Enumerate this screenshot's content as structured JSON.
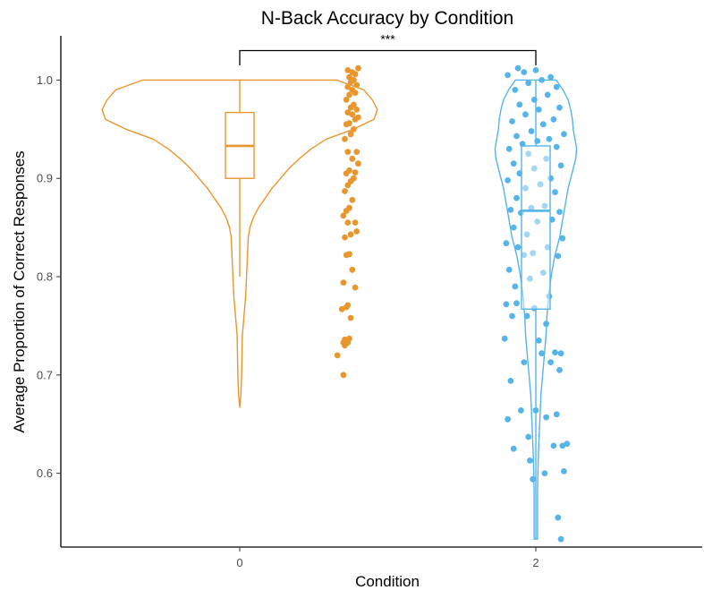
{
  "chart_data": {
    "type": "violin",
    "title": "N-Back Accuracy by Condition",
    "xlabel": "Condition",
    "ylabel": "Average Proportion of Correct Responses",
    "categories": [
      "0",
      "2"
    ],
    "ylim": [
      0.525,
      1.045
    ],
    "yticks": [
      0.6,
      0.7,
      0.8,
      0.9,
      1.0
    ],
    "ytick_labels": [
      "0.6",
      "0.7",
      "0.8",
      "0.9",
      "1.0"
    ],
    "grid": false,
    "significance": {
      "label": "***",
      "between": [
        "0",
        "2"
      ]
    },
    "series": [
      {
        "category": "0",
        "color": "#E8962E",
        "box": {
          "min": 0.8,
          "q1": 0.9,
          "median": 0.933,
          "q3": 0.967,
          "max": 1.0
        },
        "violin": [
          [
            1.0,
            0.57
          ],
          [
            0.99,
            0.73
          ],
          [
            0.98,
            0.78
          ],
          [
            0.97,
            0.81
          ],
          [
            0.96,
            0.79
          ],
          [
            0.95,
            0.67
          ],
          [
            0.94,
            0.51
          ],
          [
            0.93,
            0.42
          ],
          [
            0.92,
            0.35
          ],
          [
            0.91,
            0.29
          ],
          [
            0.9,
            0.24
          ],
          [
            0.89,
            0.19
          ],
          [
            0.88,
            0.15
          ],
          [
            0.87,
            0.11
          ],
          [
            0.86,
            0.08
          ],
          [
            0.85,
            0.06
          ],
          [
            0.84,
            0.05
          ],
          [
            0.82,
            0.045
          ],
          [
            0.8,
            0.04
          ],
          [
            0.78,
            0.035
          ],
          [
            0.76,
            0.025
          ],
          [
            0.74,
            0.015
          ],
          [
            0.72,
            0.013
          ],
          [
            0.7,
            0.011
          ],
          [
            0.68,
            0.007
          ],
          [
            0.667,
            0.0
          ]
        ],
        "points": [
          [
            0.66,
            0.72
          ],
          [
            0.7,
            0.7
          ],
          [
            0.7,
            0.733
          ],
          [
            0.73,
            0.733
          ],
          [
            0.71,
            0.73
          ],
          [
            0.69,
            0.767
          ],
          [
            0.74,
            0.737
          ],
          [
            0.71,
            0.736
          ],
          [
            0.75,
            0.758
          ],
          [
            0.72,
            0.769
          ],
          [
            0.73,
            0.771
          ],
          [
            0.78,
            0.789
          ],
          [
            0.7,
            0.794
          ],
          [
            0.76,
            0.807
          ],
          [
            0.72,
            0.822
          ],
          [
            0.74,
            0.823
          ],
          [
            0.71,
            0.84
          ],
          [
            0.75,
            0.843
          ],
          [
            0.73,
            0.855
          ],
          [
            0.78,
            0.855
          ],
          [
            0.7,
            0.862
          ],
          [
            0.72,
            0.867
          ],
          [
            0.74,
            0.87
          ],
          [
            0.71,
            0.887
          ],
          [
            0.76,
            0.878
          ],
          [
            0.79,
            0.846
          ],
          [
            0.73,
            0.893
          ],
          [
            0.75,
            0.897
          ],
          [
            0.77,
            0.9
          ],
          [
            0.72,
            0.905
          ],
          [
            0.78,
            0.906
          ],
          [
            0.74,
            0.908
          ],
          [
            0.8,
            0.915
          ],
          [
            0.76,
            0.92
          ],
          [
            0.73,
            0.927
          ],
          [
            0.79,
            0.927
          ],
          [
            0.71,
            0.94
          ],
          [
            0.75,
            0.945
          ],
          [
            0.77,
            0.95
          ],
          [
            0.72,
            0.955
          ],
          [
            0.74,
            0.956
          ],
          [
            0.78,
            0.96
          ],
          [
            0.8,
            0.962
          ],
          [
            0.76,
            0.965
          ],
          [
            0.73,
            0.967
          ],
          [
            0.79,
            0.97
          ],
          [
            0.75,
            0.972
          ],
          [
            0.77,
            0.975
          ],
          [
            0.72,
            0.98
          ],
          [
            0.74,
            0.985
          ],
          [
            0.78,
            0.987
          ],
          [
            0.76,
            0.99
          ],
          [
            0.73,
            0.993
          ],
          [
            0.79,
            0.995
          ],
          [
            0.75,
            0.998
          ],
          [
            0.77,
            1.0
          ],
          [
            0.74,
            1.003
          ],
          [
            0.78,
            1.006
          ],
          [
            0.76,
            1.008
          ],
          [
            0.73,
            1.01
          ],
          [
            0.8,
            1.012
          ]
        ]
      },
      {
        "category": "2",
        "color": "#56B4E9",
        "box": {
          "min": 0.533,
          "q1": 0.767,
          "median": 0.867,
          "q3": 0.933,
          "max": 1.0
        },
        "violin": [
          [
            1.0,
            0.12
          ],
          [
            0.99,
            0.16
          ],
          [
            0.98,
            0.19
          ],
          [
            0.97,
            0.205
          ],
          [
            0.96,
            0.215
          ],
          [
            0.95,
            0.22
          ],
          [
            0.94,
            0.23
          ],
          [
            0.93,
            0.24
          ],
          [
            0.92,
            0.235
          ],
          [
            0.91,
            0.22
          ],
          [
            0.9,
            0.205
          ],
          [
            0.89,
            0.19
          ],
          [
            0.88,
            0.18
          ],
          [
            0.87,
            0.17
          ],
          [
            0.86,
            0.16
          ],
          [
            0.85,
            0.15
          ],
          [
            0.84,
            0.14
          ],
          [
            0.83,
            0.125
          ],
          [
            0.82,
            0.11
          ],
          [
            0.8,
            0.09
          ],
          [
            0.78,
            0.075
          ],
          [
            0.76,
            0.065
          ],
          [
            0.74,
            0.06
          ],
          [
            0.72,
            0.05
          ],
          [
            0.7,
            0.04
          ],
          [
            0.68,
            0.03
          ],
          [
            0.66,
            0.025
          ],
          [
            0.64,
            0.02
          ],
          [
            0.62,
            0.015
          ],
          [
            0.6,
            0.012
          ],
          [
            0.58,
            0.01
          ],
          [
            0.56,
            0.01
          ],
          [
            0.54,
            0.01
          ],
          [
            0.533,
            0.01
          ]
        ],
        "points": [
          [
            2.17,
            0.533
          ],
          [
            2.15,
            0.555
          ],
          [
            1.98,
            0.594
          ],
          [
            2.06,
            0.6
          ],
          [
            2.19,
            0.602
          ],
          [
            1.96,
            0.613
          ],
          [
            2.18,
            0.628
          ],
          [
            1.85,
            0.625
          ],
          [
            2.12,
            0.628
          ],
          [
            2.21,
            0.63
          ],
          [
            1.95,
            0.637
          ],
          [
            2.07,
            0.657
          ],
          [
            2.14,
            0.66
          ],
          [
            1.81,
            0.655
          ],
          [
            1.9,
            0.664
          ],
          [
            2.0,
            0.664
          ],
          [
            1.83,
            0.694
          ],
          [
            2.16,
            0.705
          ],
          [
            2.1,
            0.713
          ],
          [
            1.92,
            0.713
          ],
          [
            2.04,
            0.722
          ],
          [
            2.13,
            0.723
          ],
          [
            1.79,
            0.737
          ],
          [
            2.17,
            0.722
          ],
          [
            1.84,
            0.76
          ],
          [
            2.02,
            0.735
          ],
          [
            1.94,
            0.76
          ],
          [
            1.87,
            0.773
          ],
          [
            2.07,
            0.752
          ],
          [
            1.99,
            0.768
          ],
          [
            1.8,
            0.772
          ],
          [
            2.09,
            0.78
          ],
          [
            1.86,
            0.79
          ],
          [
            1.96,
            0.798
          ],
          [
            2.05,
            0.804
          ],
          [
            1.82,
            0.807
          ],
          [
            1.92,
            0.822
          ],
          [
            2.15,
            0.821
          ],
          [
            1.88,
            0.83
          ],
          [
            1.98,
            0.824
          ],
          [
            2.08,
            0.83
          ],
          [
            1.8,
            0.834
          ],
          [
            1.94,
            0.843
          ],
          [
            2.18,
            0.839
          ],
          [
            1.85,
            0.85
          ],
          [
            2.01,
            0.856
          ],
          [
            2.11,
            0.858
          ],
          [
            1.9,
            0.865
          ],
          [
            2.16,
            0.866
          ],
          [
            1.83,
            0.868
          ],
          [
            1.97,
            0.87
          ],
          [
            2.06,
            0.872
          ],
          [
            1.87,
            0.88
          ],
          [
            2.13,
            0.886
          ],
          [
            1.93,
            0.89
          ],
          [
            2.03,
            0.894
          ],
          [
            1.81,
            0.898
          ],
          [
            2.1,
            0.9
          ],
          [
            1.89,
            0.905
          ],
          [
            1.99,
            0.91
          ],
          [
            2.17,
            0.913
          ],
          [
            1.85,
            0.915
          ],
          [
            2.07,
            0.92
          ],
          [
            1.95,
            0.925
          ],
          [
            1.82,
            0.93
          ],
          [
            2.14,
            0.932
          ],
          [
            1.91,
            0.935
          ],
          [
            2.01,
            0.938
          ],
          [
            2.09,
            0.94
          ],
          [
            1.87,
            0.943
          ],
          [
            2.19,
            0.945
          ],
          [
            1.97,
            0.948
          ],
          [
            2.05,
            0.955
          ],
          [
            1.84,
            0.958
          ],
          [
            2.12,
            0.96
          ],
          [
            1.93,
            0.965
          ],
          [
            2.02,
            0.97
          ],
          [
            2.16,
            0.972
          ],
          [
            1.89,
            0.975
          ],
          [
            1.99,
            0.98
          ],
          [
            2.08,
            0.985
          ],
          [
            1.86,
            0.99
          ],
          [
            2.14,
            0.993
          ],
          [
            1.95,
            0.997
          ],
          [
            2.04,
            1.0
          ],
          [
            1.81,
            1.005
          ],
          [
            2.1,
            1.003
          ],
          [
            1.92,
            1.008
          ],
          [
            2.0,
            1.01
          ],
          [
            1.88,
            1.012
          ]
        ]
      }
    ]
  }
}
